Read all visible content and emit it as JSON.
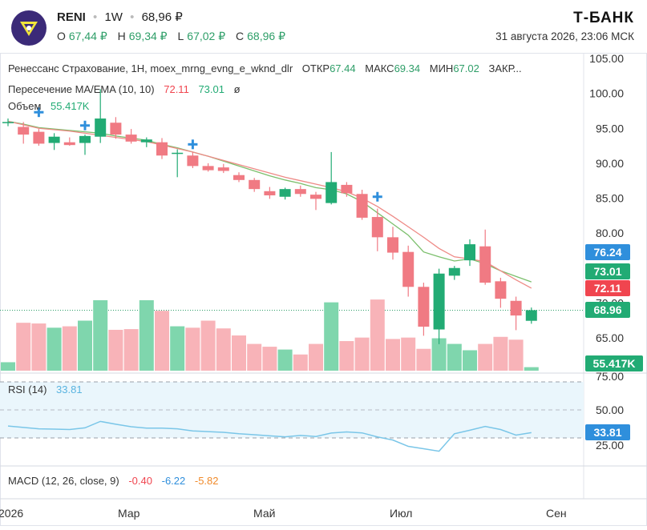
{
  "header": {
    "ticker": "RENI",
    "interval": "1W",
    "price": "68,96 ₽",
    "ohlc": [
      {
        "label": "O",
        "value": "67,44 ₽"
      },
      {
        "label": "H",
        "value": "69,34 ₽"
      },
      {
        "label": "L",
        "value": "67,02 ₽"
      },
      {
        "label": "C",
        "value": "68,96 ₽"
      }
    ],
    "brand": "Т‑БАНК",
    "datetime": "31 августа 2026, 23:06 МСК"
  },
  "legend": {
    "main_title": "Ренессанс Страхование, 1H, moex_mrng_evng_e_wknd_dlr",
    "ohlc_items": [
      {
        "label": "ОТКР",
        "value": "67.44"
      },
      {
        "label": "МАКС",
        "value": "69.34"
      },
      {
        "label": "МИН",
        "value": "67.02"
      },
      {
        "label": "ЗАКР...",
        "value": ""
      }
    ],
    "ma_title": "Пересечение MA/EMA (10, 10)",
    "ma_value": "72.11",
    "ema_value": "73.01",
    "ma_extra": "ø",
    "volume_title": "Объем",
    "volume_value": "55.417K"
  },
  "rsi_legend": {
    "title": "RSI (14)",
    "value": "33.81"
  },
  "macd_legend": {
    "title": "MACD (12, 26, close, 9)",
    "v1": "-0.40",
    "v2": "-6.22",
    "v3": "-5.82"
  },
  "colors": {
    "up": "#22ab74",
    "down": "#f07a83",
    "vol_up": "#7fd6ad",
    "vol_down": "#f8b3b8",
    "ma": "#ee8a86",
    "ema": "#7bbf6c",
    "rsi": "#7ac6e8",
    "cross": "#2f8fdc",
    "last": "#2e9e68"
  },
  "chart_data": {
    "type": "candlestick",
    "price_ticks": [
      "105.00",
      "100.00",
      "95.00",
      "90.00",
      "85.00",
      "80.00",
      "75.00",
      "70.00",
      "65.00"
    ],
    "x_ticks": [
      "2026",
      "Мар",
      "Май",
      "Июл",
      "Сен"
    ],
    "price_tags": [
      {
        "label": "76.24",
        "value": 76.24,
        "color": "#2f8fdc"
      },
      {
        "label": "73.01",
        "value": 73.01,
        "color": "#22ab74"
      },
      {
        "label": "72.11",
        "value": 72.11,
        "color": "#f0454f"
      },
      {
        "label": "68.96",
        "value": 68.96,
        "color": "#22ab74"
      }
    ],
    "volume_tag": "55.417K",
    "candles": [
      {
        "o": 95.9,
        "h": 96.4,
        "l": 95.3,
        "c": 95.9
      },
      {
        "o": 95.2,
        "h": 95.9,
        "l": 92.8,
        "c": 94.1
      },
      {
        "o": 94.5,
        "h": 94.9,
        "l": 92.5,
        "c": 92.8
      },
      {
        "o": 92.9,
        "h": 94.3,
        "l": 91.9,
        "c": 93.8
      },
      {
        "o": 93.0,
        "h": 93.7,
        "l": 92.5,
        "c": 92.6
      },
      {
        "o": 92.9,
        "h": 94.1,
        "l": 91.2,
        "c": 93.9
      },
      {
        "o": 93.8,
        "h": 100.6,
        "l": 92.9,
        "c": 96.4
      },
      {
        "o": 95.8,
        "h": 96.6,
        "l": 93.5,
        "c": 94.1
      },
      {
        "o": 94.1,
        "h": 94.9,
        "l": 92.8,
        "c": 93.1
      },
      {
        "o": 93.0,
        "h": 93.7,
        "l": 92.3,
        "c": 93.4
      },
      {
        "o": 93.0,
        "h": 93.6,
        "l": 90.6,
        "c": 91.1
      },
      {
        "o": 91.4,
        "h": 92.0,
        "l": 88.0,
        "c": 91.5
      },
      {
        "o": 91.1,
        "h": 91.6,
        "l": 89.3,
        "c": 89.6
      },
      {
        "o": 89.6,
        "h": 90.0,
        "l": 88.8,
        "c": 89.0
      },
      {
        "o": 89.4,
        "h": 89.9,
        "l": 88.6,
        "c": 88.9
      },
      {
        "o": 88.3,
        "h": 88.7,
        "l": 87.3,
        "c": 87.6
      },
      {
        "o": 87.6,
        "h": 87.9,
        "l": 85.9,
        "c": 86.3
      },
      {
        "o": 86.0,
        "h": 86.6,
        "l": 84.9,
        "c": 85.4
      },
      {
        "o": 85.2,
        "h": 86.5,
        "l": 84.8,
        "c": 86.3
      },
      {
        "o": 86.3,
        "h": 86.8,
        "l": 85.2,
        "c": 85.6
      },
      {
        "o": 85.5,
        "h": 85.9,
        "l": 83.3,
        "c": 84.9
      },
      {
        "o": 84.3,
        "h": 91.6,
        "l": 84.1,
        "c": 87.3
      },
      {
        "o": 86.9,
        "h": 87.3,
        "l": 85.2,
        "c": 85.7
      },
      {
        "o": 85.6,
        "h": 86.2,
        "l": 81.9,
        "c": 82.2
      },
      {
        "o": 82.3,
        "h": 83.5,
        "l": 77.4,
        "c": 79.4
      },
      {
        "o": 79.4,
        "h": 80.9,
        "l": 76.2,
        "c": 77.2
      },
      {
        "o": 77.3,
        "h": 78.2,
        "l": 70.9,
        "c": 72.3
      },
      {
        "o": 72.3,
        "h": 72.9,
        "l": 65.3,
        "c": 66.6
      },
      {
        "o": 66.2,
        "h": 74.9,
        "l": 64.1,
        "c": 74.2
      },
      {
        "o": 73.9,
        "h": 75.3,
        "l": 73.3,
        "c": 75.0
      },
      {
        "o": 76.1,
        "h": 79.1,
        "l": 75.3,
        "c": 78.4
      },
      {
        "o": 78.1,
        "h": 80.5,
        "l": 72.6,
        "c": 72.9
      },
      {
        "o": 73.1,
        "h": 73.6,
        "l": 69.3,
        "c": 70.6
      },
      {
        "o": 70.3,
        "h": 70.9,
        "l": 66.1,
        "c": 68.2
      },
      {
        "o": 67.44,
        "h": 69.34,
        "l": 67.02,
        "c": 68.96
      }
    ],
    "ma": [
      96.0,
      95.5,
      95.0,
      94.8,
      94.6,
      94.3,
      94.0,
      93.7,
      93.4,
      93.1,
      92.6,
      92.1,
      91.6,
      91.0,
      90.4,
      89.8,
      89.2,
      88.6,
      88.0,
      87.5,
      87.0,
      86.5,
      85.9,
      85.0,
      83.8,
      82.4,
      80.9,
      79.4,
      77.8,
      76.6,
      76.3,
      75.9,
      74.6,
      73.3,
      72.11
    ],
    "ema": [
      96.0,
      95.6,
      95.1,
      94.9,
      94.7,
      94.5,
      94.3,
      93.9,
      93.6,
      93.3,
      92.7,
      92.2,
      91.6,
      91.0,
      90.3,
      89.6,
      88.9,
      88.2,
      87.6,
      87.1,
      86.5,
      86.2,
      85.6,
      84.5,
      82.9,
      81.3,
      79.7,
      77.3,
      76.6,
      76.0,
      76.3,
      75.6,
      74.6,
      73.8,
      73.01
    ],
    "crosses": [
      {
        "i": 2,
        "v": 97.3
      },
      {
        "i": 5,
        "v": 95.4
      },
      {
        "i": 12,
        "v": 92.7
      },
      {
        "i": 24,
        "v": 85.2
      }
    ],
    "volume_max": 100,
    "volume": [
      12,
      68,
      67,
      61,
      63,
      71,
      100,
      58,
      59,
      100,
      85,
      63,
      61,
      71,
      60,
      50,
      38,
      34,
      30,
      23,
      38,
      97,
      42,
      47,
      101,
      45,
      47,
      31,
      46,
      38,
      29,
      38,
      48,
      44,
      5
    ],
    "rsi_levels": [
      70,
      50,
      30
    ],
    "rsi_ticks": [
      "75.00",
      "50.00",
      "25.00"
    ],
    "rsi_tag": "33.81",
    "rsi": [
      38.5,
      37.5,
      36.5,
      36.3,
      36.0,
      37.2,
      41.8,
      39.8,
      38.0,
      37.0,
      37.0,
      36.5,
      35.0,
      34.5,
      34.0,
      33.0,
      32.3,
      31.5,
      30.8,
      31.8,
      31.0,
      33.5,
      34.3,
      33.6,
      30.7,
      28.5,
      24.0,
      22.3,
      20.5,
      33.0,
      35.5,
      38.2,
      36.0,
      32.0,
      33.81
    ]
  }
}
